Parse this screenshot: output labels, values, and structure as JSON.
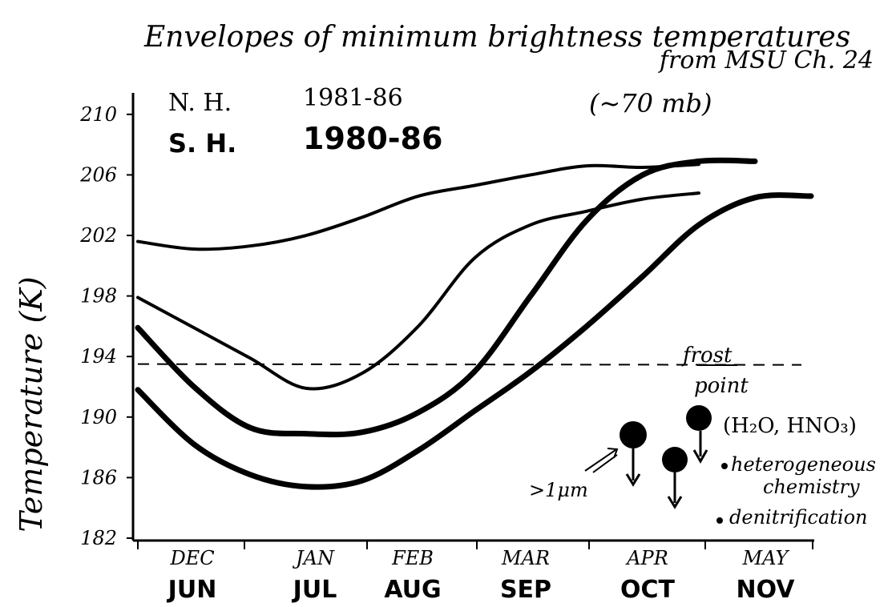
{
  "chart_data": {
    "type": "line",
    "title": "Envelopes of minimum brightness temperatures",
    "subtitle_line1": "from MSU Ch. 24",
    "subtitle_line2": "(~70 mb)",
    "legend": [
      {
        "label": "N. H.",
        "years": "1981-86",
        "style": "thin"
      },
      {
        "label": "S. H.",
        "years": "1980-86",
        "style": "bold"
      }
    ],
    "ylabel": "Temperature (K)",
    "ylim": [
      182,
      211
    ],
    "yticks": [
      "210",
      "206",
      "202",
      "198",
      "194",
      "190",
      "186",
      "182"
    ],
    "x_months_nh": [
      "DEC",
      "JAN",
      "FEB",
      "MAR",
      "APR",
      "MAY"
    ],
    "x_months_sh": [
      "JUN",
      "JUL",
      "AUG",
      "SEP",
      "OCT",
      "NOV"
    ],
    "x": [
      0,
      0.5,
      1,
      1.5,
      2,
      2.5,
      3,
      3.5,
      4,
      4.5,
      5,
      5.5,
      6
    ],
    "series": [
      {
        "hemisphere": "N. H.",
        "style": "thin",
        "values": [
          201.6,
          201.1,
          201.3,
          202.0,
          203.2,
          204.6,
          205.3,
          206.0,
          206.6,
          206.5,
          206.7,
          null,
          null
        ]
      },
      {
        "hemisphere": "N. H.",
        "style": "thin",
        "values": [
          197.9,
          195.9,
          193.9,
          191.9,
          192.9,
          196.0,
          200.5,
          202.7,
          203.6,
          204.4,
          204.8,
          null,
          null
        ]
      },
      {
        "hemisphere": "S. H.",
        "style": "bold",
        "values": [
          195.9,
          192.0,
          189.3,
          188.9,
          189.0,
          190.3,
          193.0,
          198.0,
          203.0,
          206.0,
          206.9,
          206.9,
          null
        ]
      },
      {
        "hemisphere": "S. H.",
        "style": "bold",
        "values": [
          191.8,
          188.2,
          186.2,
          185.4,
          185.8,
          187.8,
          190.4,
          193.0,
          196.0,
          199.3,
          202.7,
          204.5,
          204.6
        ]
      }
    ],
    "reference_line": {
      "value": 193.5,
      "label": "frost point",
      "style": "dashed"
    },
    "annotations": {
      "particles": "(H₂O, HNO₃)",
      "bullet1a": "heterogeneous",
      "bullet1b": "chemistry",
      "bullet2": "denitrification",
      "size": ">1μm"
    }
  }
}
